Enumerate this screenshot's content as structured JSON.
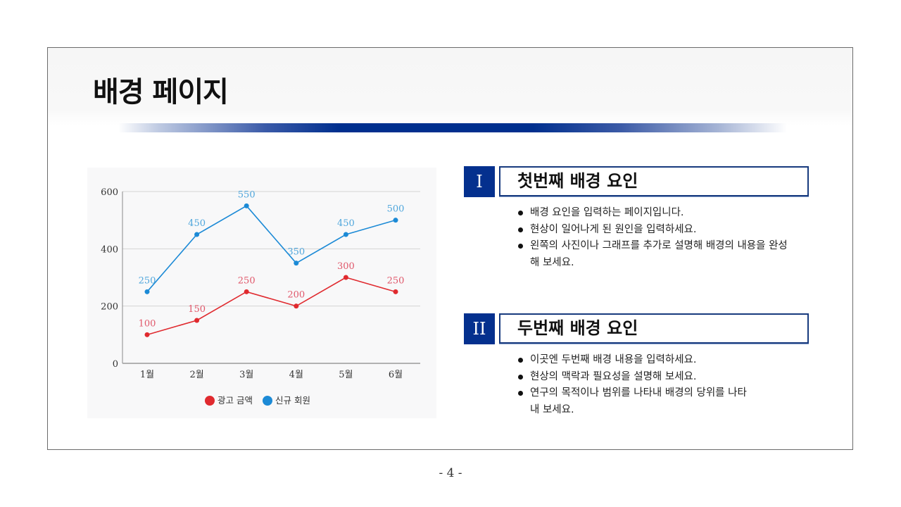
{
  "page": {
    "title": "배경 페이지",
    "page_number": "- 4 -",
    "accent_color": "#04308e"
  },
  "sections": [
    {
      "numeral": "I",
      "title": "첫번째 배경 요인",
      "bullets": [
        "배경 요인을 입력하는 페이지입니다.",
        "현상이 일어나게 된 원인을 입력하세요.",
        "왼쪽의 사진이나 그래프를 추가로 설명해 배경의 내용을 완성해 보세요."
      ]
    },
    {
      "numeral": "II",
      "title": "두번째 배경 요인",
      "bullets": [
        "이곳엔 두번째 배경 내용을 입력하세요.",
        "현상의 맥락과 필요성을 설명해 보세요.",
        "연구의 목적이나 범위를 나타내 배경의 당위를 나타내 보세요."
      ]
    }
  ],
  "chart_data": {
    "type": "line",
    "title": "",
    "xlabel": "",
    "ylabel": "",
    "categories": [
      "1월",
      "2월",
      "3월",
      "4월",
      "5월",
      "6월"
    ],
    "series": [
      {
        "name": "광고 금액",
        "color": "#e02a2f",
        "values": [
          100,
          150,
          250,
          200,
          300,
          250
        ]
      },
      {
        "name": "신규 회원",
        "color": "#1c8ad6",
        "values": [
          250,
          450,
          550,
          350,
          450,
          500
        ]
      }
    ],
    "y_ticks": [
      "0",
      "200",
      "400",
      "600"
    ],
    "ylim": [
      0,
      600
    ],
    "grid": true,
    "legend_position": "bottom",
    "data_labels": true
  }
}
